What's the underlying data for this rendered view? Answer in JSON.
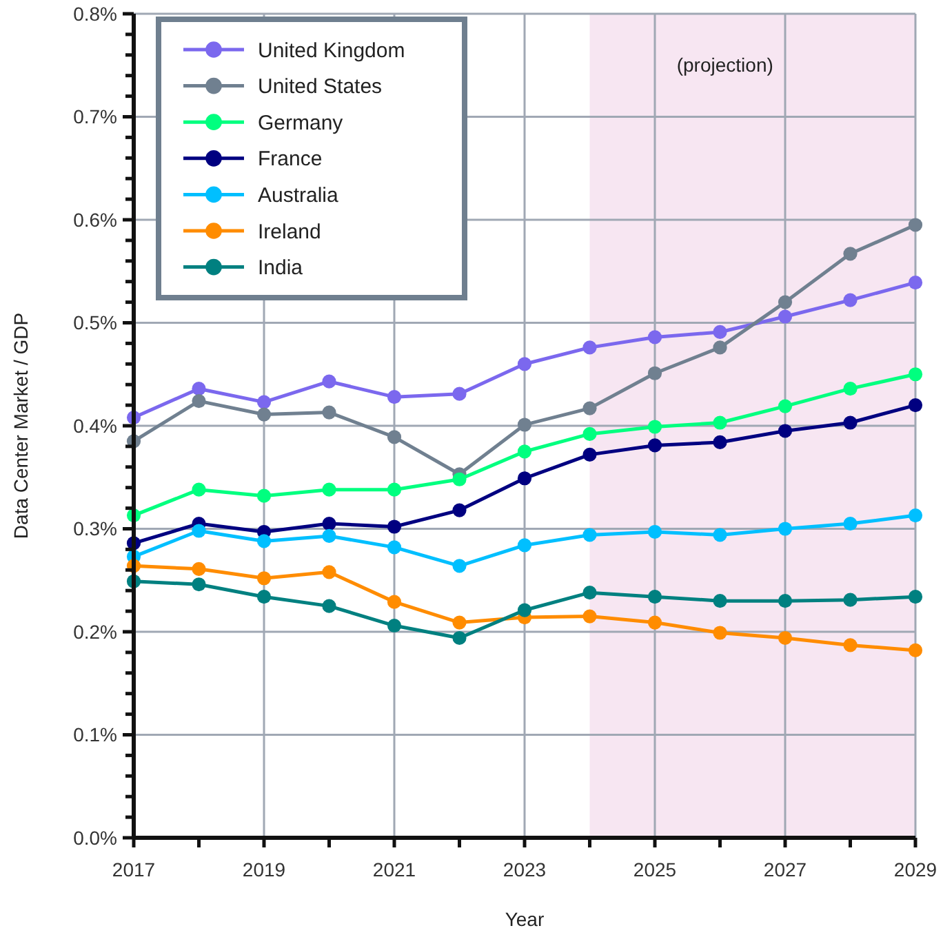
{
  "chart_data": {
    "type": "line",
    "xlabel": "Year",
    "ylabel": "Data Center Market / GDP",
    "x": [
      2017,
      2018,
      2019,
      2020,
      2021,
      2022,
      2023,
      2024,
      2025,
      2026,
      2027,
      2028,
      2029
    ],
    "xlim": [
      2017,
      2029
    ],
    "xticks": [
      2017,
      {
        "value": 2018,
        "label": null
      },
      2019,
      {
        "value": 2020,
        "label": null
      },
      2021,
      {
        "value": 2022,
        "label": null
      },
      2023,
      {
        "value": 2024,
        "label": null
      },
      2025,
      {
        "value": 2026,
        "label": null
      },
      2027,
      {
        "value": 2028,
        "label": null
      },
      2029
    ],
    "ylim": [
      0,
      0.8
    ],
    "yticks": [
      {
        "value": 0,
        "label": "0.0%"
      },
      {
        "value": 0.02,
        "label": null
      },
      {
        "value": 0.04,
        "label": null
      },
      {
        "value": 0.06,
        "label": null
      },
      {
        "value": 0.08,
        "label": null
      },
      {
        "value": 0.1,
        "label": "0.1%"
      },
      {
        "value": 0.12,
        "label": null
      },
      {
        "value": 0.14,
        "label": null
      },
      {
        "value": 0.16,
        "label": null
      },
      {
        "value": 0.18,
        "label": null
      },
      {
        "value": 0.2,
        "label": "0.2%"
      },
      {
        "value": 0.22,
        "label": null
      },
      {
        "value": 0.24,
        "label": null
      },
      {
        "value": 0.26,
        "label": null
      },
      {
        "value": 0.28,
        "label": null
      },
      {
        "value": 0.3,
        "label": "0.3%"
      },
      {
        "value": 0.32,
        "label": null
      },
      {
        "value": 0.34,
        "label": null
      },
      {
        "value": 0.36,
        "label": null
      },
      {
        "value": 0.38,
        "label": null
      },
      {
        "value": 0.4,
        "label": "0.4%"
      },
      {
        "value": 0.42,
        "label": null
      },
      {
        "value": 0.44,
        "label": null
      },
      {
        "value": 0.46,
        "label": null
      },
      {
        "value": 0.48,
        "label": null
      },
      {
        "value": 0.5,
        "label": "0.5%"
      },
      {
        "value": 0.52,
        "label": null
      },
      {
        "value": 0.54,
        "label": null
      },
      {
        "value": 0.56,
        "label": null
      },
      {
        "value": 0.58,
        "label": null
      },
      {
        "value": 0.6,
        "label": "0.6%"
      },
      {
        "value": 0.62,
        "label": null
      },
      {
        "value": 0.64,
        "label": null
      },
      {
        "value": 0.66,
        "label": null
      },
      {
        "value": 0.68,
        "label": null
      },
      {
        "value": 0.7,
        "label": "0.7%"
      },
      {
        "value": 0.72,
        "label": null
      },
      {
        "value": 0.74,
        "label": null
      },
      {
        "value": 0.76,
        "label": null
      },
      {
        "value": 0.78,
        "label": null
      },
      {
        "value": 0.8,
        "label": "0.8%"
      }
    ],
    "grid": true,
    "legend": "top left",
    "marker": "circle",
    "line_style": "solid",
    "bands": [
      {
        "axis": "x",
        "from": 2024,
        "to": 2029,
        "label": "(projection)",
        "color": "#f7e6f2"
      }
    ],
    "series": [
      {
        "name": "United Kingdom",
        "color": "#7b68ee",
        "values": [
          0.408,
          0.436,
          0.423,
          0.443,
          0.428,
          0.431,
          0.46,
          0.476,
          0.486,
          0.491,
          0.506,
          0.522,
          0.539
        ]
      },
      {
        "name": "United States",
        "color": "#708090",
        "values": [
          0.385,
          0.424,
          0.411,
          0.413,
          0.389,
          0.353,
          0.401,
          0.417,
          0.451,
          0.476,
          0.52,
          0.567,
          0.595
        ]
      },
      {
        "name": "Germany",
        "color": "#00ff7f",
        "values": [
          0.313,
          0.338,
          0.332,
          0.338,
          0.338,
          0.348,
          0.375,
          0.392,
          0.399,
          0.403,
          0.419,
          0.436,
          0.45
        ]
      },
      {
        "name": "France",
        "color": "#000080",
        "values": [
          0.286,
          0.305,
          0.297,
          0.305,
          0.302,
          0.318,
          0.349,
          0.372,
          0.381,
          0.384,
          0.395,
          0.403,
          0.42
        ]
      },
      {
        "name": "Australia",
        "color": "#00bfff",
        "values": [
          0.273,
          0.298,
          0.288,
          0.293,
          0.282,
          0.264,
          0.284,
          0.294,
          0.297,
          0.294,
          0.3,
          0.305,
          0.313
        ]
      },
      {
        "name": "Ireland",
        "color": "#ff8c00",
        "values": [
          0.264,
          0.261,
          0.252,
          0.258,
          0.229,
          0.209,
          0.214,
          0.215,
          0.209,
          0.199,
          0.194,
          0.187,
          0.182
        ]
      },
      {
        "name": "India",
        "color": "#008080",
        "values": [
          0.249,
          0.246,
          0.234,
          0.225,
          0.206,
          0.194,
          0.221,
          0.238,
          0.234,
          0.23,
          0.23,
          0.231,
          0.234
        ]
      }
    ]
  }
}
